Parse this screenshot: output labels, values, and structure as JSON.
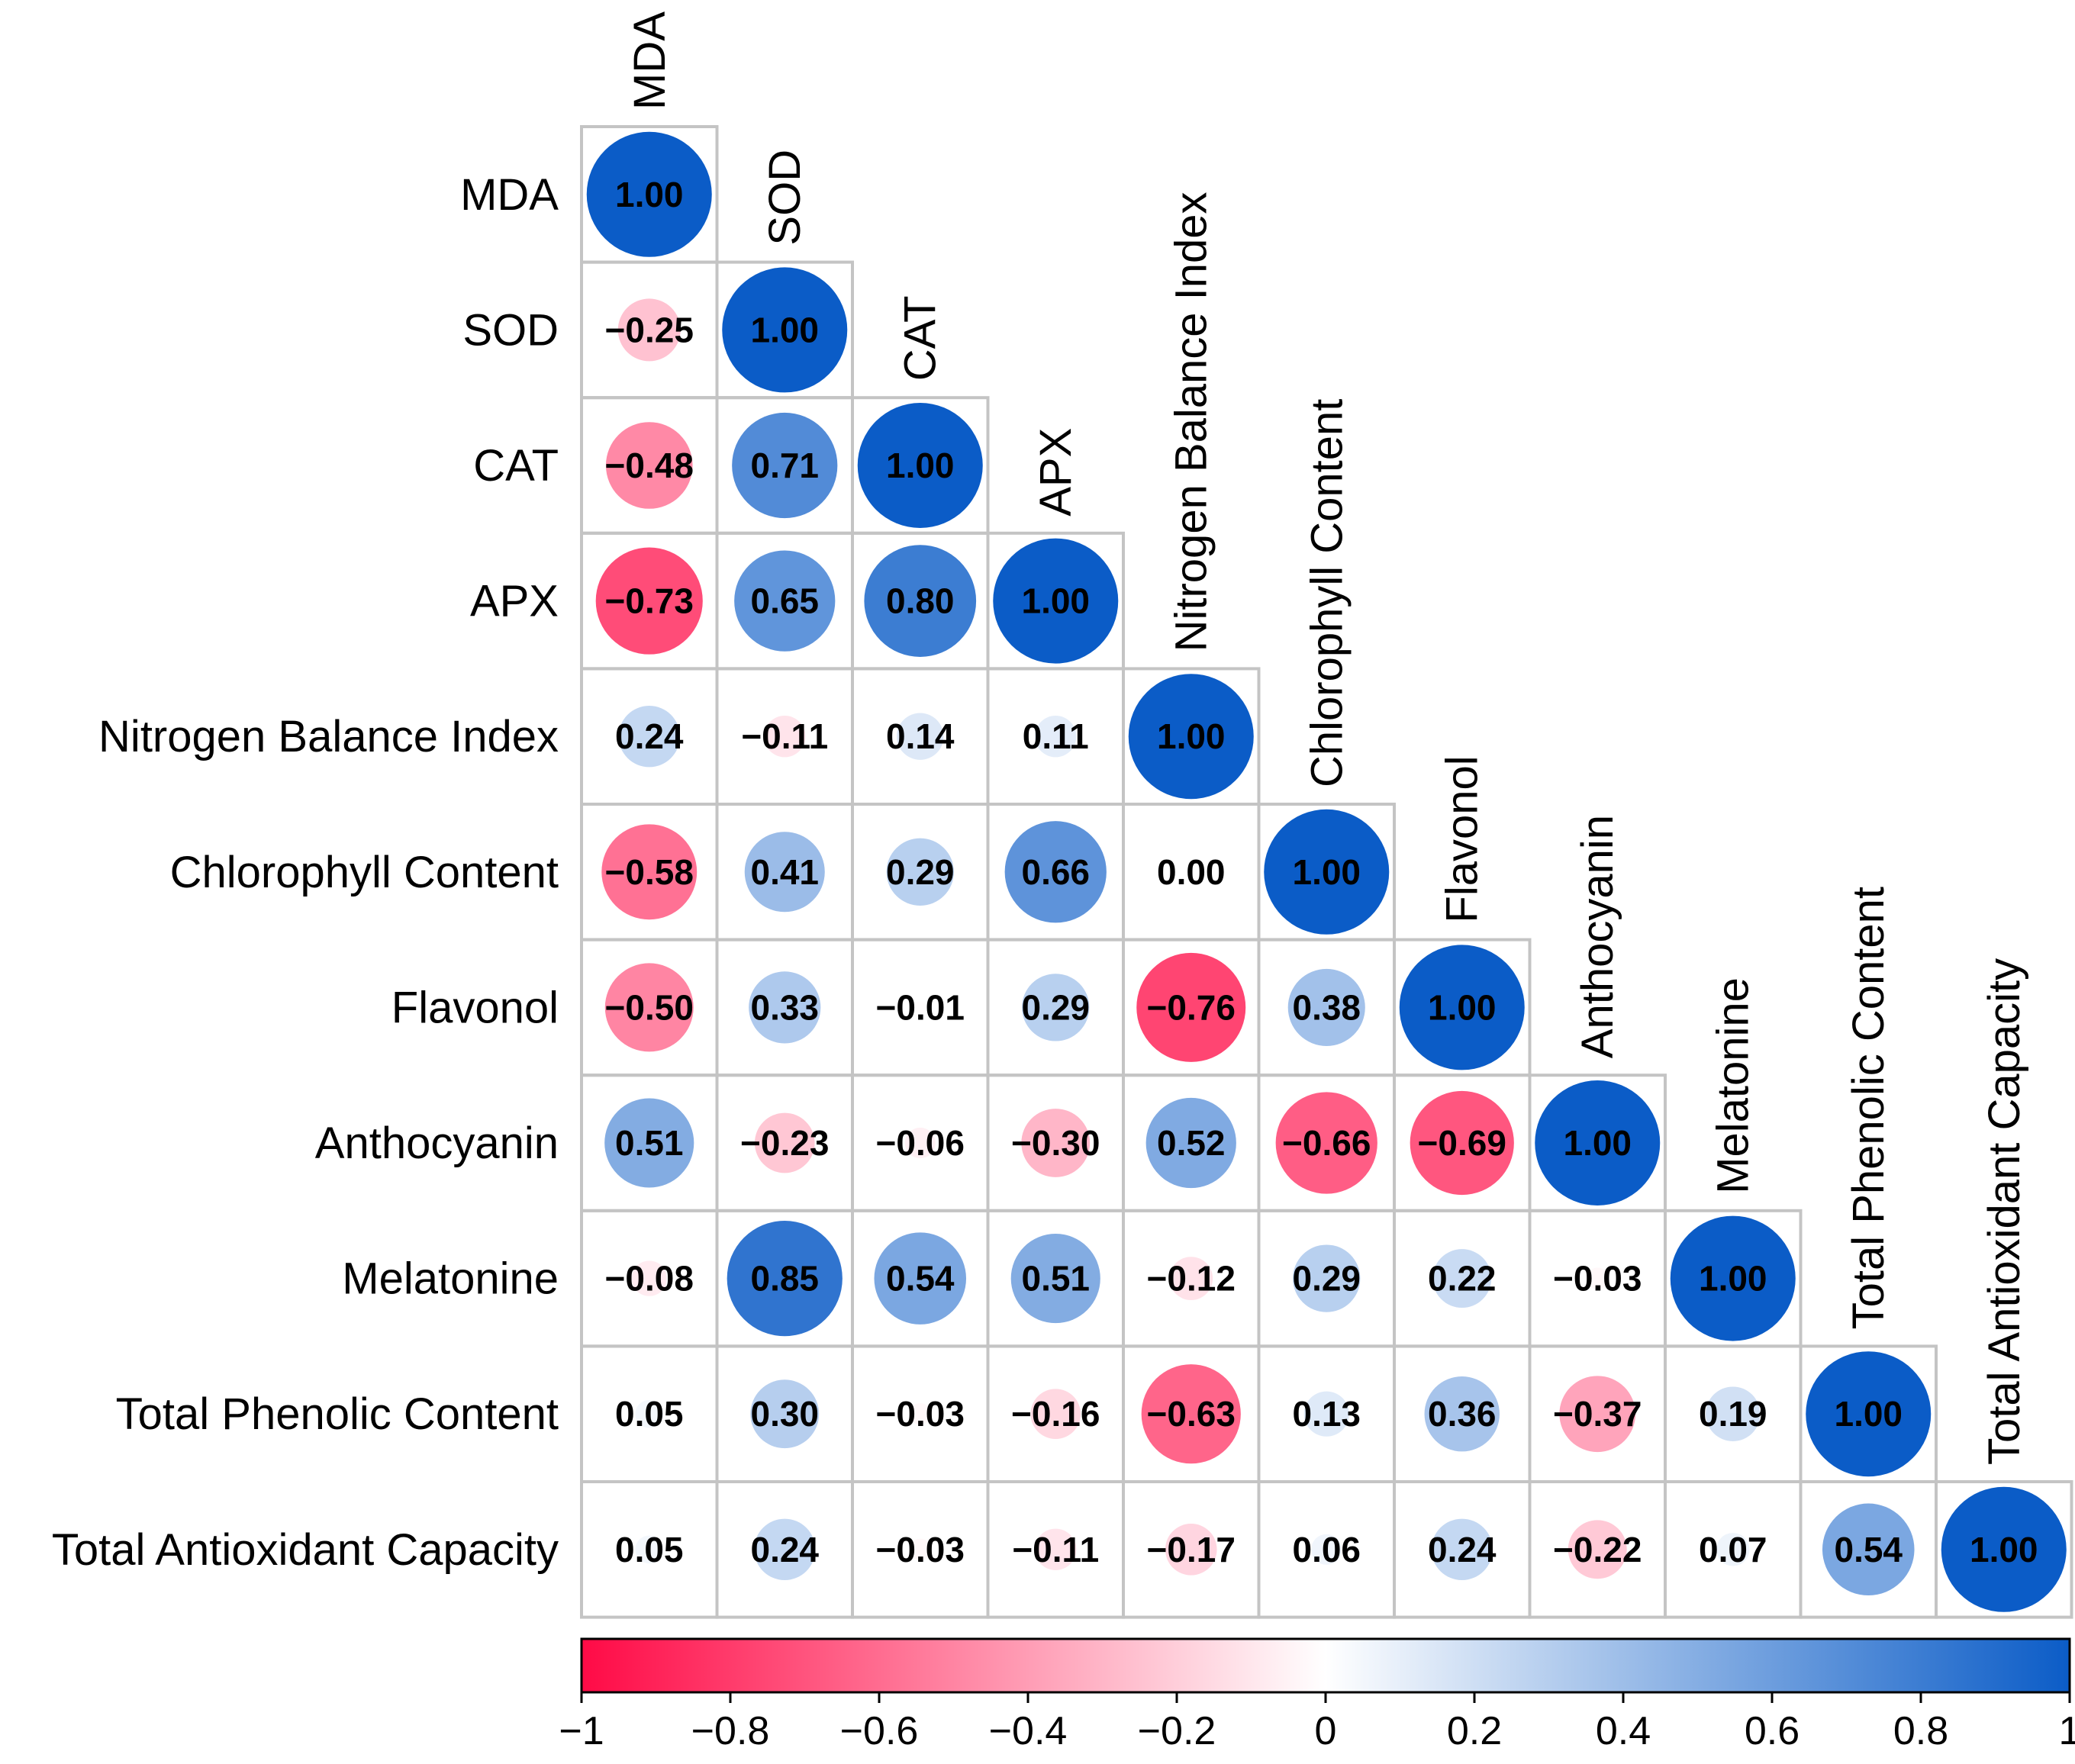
{
  "chart_data": {
    "type": "heatmap",
    "title": "",
    "variables": [
      "MDA",
      "SOD",
      "CAT",
      "APX",
      "Nitrogen Balance Index",
      "Chlorophyll Content",
      "Flavonol",
      "Anthocyanin",
      "Melatonine",
      "Total Phenolic Content",
      "Total Antioxidant Capacity"
    ],
    "matrix_lower": [
      [
        "1.00"
      ],
      [
        "−0.25",
        "1.00"
      ],
      [
        "−0.48",
        "0.71",
        "1.00"
      ],
      [
        "−0.73",
        "0.65",
        "0.80",
        "1.00"
      ],
      [
        "0.24",
        "−0.11",
        "0.14",
        "0.11",
        "1.00"
      ],
      [
        "−0.58",
        "0.41",
        "0.29",
        "0.66",
        "0.00",
        "1.00"
      ],
      [
        "−0.50",
        "0.33",
        "−0.01",
        "0.29",
        "−0.76",
        "0.38",
        "1.00"
      ],
      [
        "0.51",
        "−0.23",
        "−0.06",
        "−0.30",
        "0.52",
        "−0.66",
        "−0.69",
        "1.00"
      ],
      [
        "−0.08",
        "0.85",
        "0.54",
        "0.51",
        "−0.12",
        "0.29",
        "0.22",
        "−0.03",
        "1.00"
      ],
      [
        "0.05",
        "0.30",
        "−0.03",
        "−0.16",
        "−0.63",
        "0.13",
        "0.36",
        "−0.37",
        "0.19",
        "1.00"
      ],
      [
        "0.05",
        "0.24",
        "−0.03",
        "−0.11",
        "−0.17",
        "0.06",
        "0.24",
        "−0.22",
        "0.07",
        "0.54",
        "1.00"
      ]
    ],
    "color_scale": {
      "range": [
        -1,
        1
      ],
      "ticks": [
        "−1",
        "−0.8",
        "−0.6",
        "−0.4",
        "−0.2",
        "0",
        "0.2",
        "0.4",
        "0.6",
        "0.8",
        "1"
      ],
      "colors": {
        "negative": "#ff0a46",
        "neutral": "#ffffff",
        "positive": "#0b5cc7"
      }
    },
    "legend": "bottom"
  }
}
